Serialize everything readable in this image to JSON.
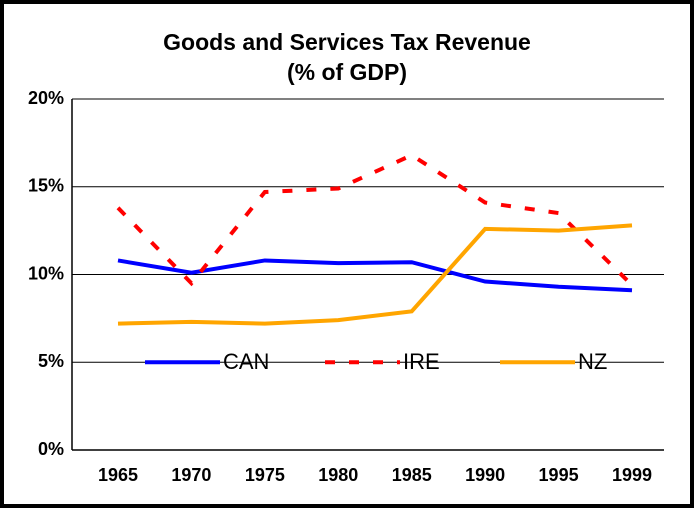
{
  "chart_data": {
    "type": "line",
    "title": [
      "Goods and Services Tax Revenue",
      "(% of GDP)"
    ],
    "categories": [
      "1965",
      "1970",
      "1975",
      "1980",
      "1985",
      "1990",
      "1995",
      "1999"
    ],
    "series": [
      {
        "name": "CAN",
        "color": "#0000ff",
        "dash": false,
        "values": [
          10.8,
          10.1,
          10.8,
          10.65,
          10.7,
          9.6,
          9.3,
          9.1
        ]
      },
      {
        "name": "IRE",
        "color": "#ff0000",
        "dash": true,
        "values": [
          13.8,
          9.5,
          14.7,
          14.9,
          16.8,
          14.1,
          13.5,
          9.4
        ]
      },
      {
        "name": "NZ",
        "color": "#ffa500",
        "dash": false,
        "values": [
          7.2,
          7.3,
          7.2,
          7.4,
          7.9,
          12.6,
          12.5,
          12.8
        ]
      }
    ],
    "ylim": [
      0,
      20
    ],
    "yticks": [
      {
        "value": 0,
        "label": "0%"
      },
      {
        "value": 5,
        "label": "5%"
      },
      {
        "value": 10,
        "label": "10%"
      },
      {
        "value": 15,
        "label": "15%"
      },
      {
        "value": 20,
        "label": "20%"
      }
    ],
    "grid": true,
    "legend": "inside"
  }
}
